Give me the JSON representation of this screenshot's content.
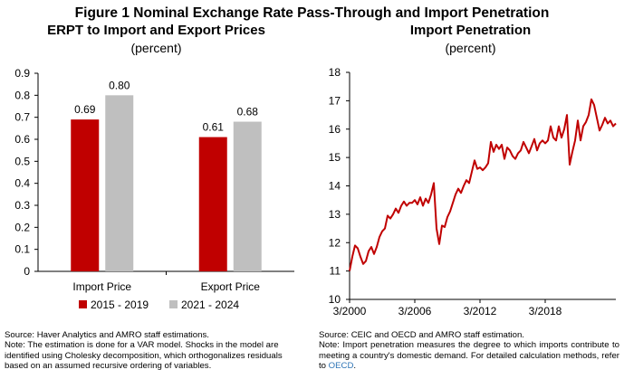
{
  "figure_title": "Figure 1 Nominal Exchange Rate Pass-Through and Import Penetration",
  "left": {
    "title": "ERPT to Import and Export Prices",
    "subtitle": "(percent)",
    "source": "Source: Haver Analytics and AMRO staff estimations.",
    "note": "Note: The estimation is done for a VAR model. Shocks in the model are identified using Cholesky decomposition, which orthogonalizes residuals based on an assumed recursive ordering of variables."
  },
  "right": {
    "title": "Import Penetration",
    "subtitle": "(percent)",
    "source": "Source: CEIC and OECD and AMRO staff estimation.",
    "note_prefix": "Note: Import penetration measures the degree to which imports contribute to meeting a country's domestic demand. For detailed calculation methods, refer to ",
    "note_link": "OECD",
    "note_suffix": "."
  },
  "colors": {
    "series_2015_2019": "#c00000",
    "series_2021_2024": "#bfbfbf",
    "line": "#c00000"
  },
  "chart_data": [
    {
      "type": "bar",
      "title": "ERPT to Import and Export Prices",
      "subtitle": "(percent)",
      "categories": [
        "Import Price",
        "Export Price"
      ],
      "series": [
        {
          "name": "2015 - 2019",
          "values": [
            0.69,
            0.61
          ],
          "labels": [
            "0.69",
            "0.61"
          ]
        },
        {
          "name": "2021 - 2024",
          "values": [
            0.8,
            0.68
          ],
          "labels": [
            "0.80",
            "0.68"
          ]
        }
      ],
      "ylim": [
        0,
        0.9
      ],
      "yticks": [
        "0",
        "0.1",
        "0.2",
        "0.3",
        "0.4",
        "0.5",
        "0.6",
        "0.7",
        "0.8",
        "0.9"
      ],
      "legend": "bottom",
      "grid": false
    },
    {
      "type": "line",
      "title": "Import Penetration",
      "subtitle": "(percent)",
      "ylim": [
        10,
        18
      ],
      "yticks": [
        "10",
        "11",
        "12",
        "13",
        "14",
        "15",
        "16",
        "17",
        "18"
      ],
      "xlim": [
        "2000-03",
        "2024-09"
      ],
      "xticks": [
        "3/2000",
        "3/2006",
        "3/2012",
        "3/2018"
      ],
      "grid": false,
      "series": [
        {
          "x": [
            "2000-03",
            "2000-06",
            "2000-09",
            "2000-12",
            "2001-03",
            "2001-06",
            "2001-09",
            "2001-12",
            "2002-03",
            "2002-06",
            "2002-09",
            "2002-12",
            "2003-03",
            "2003-06",
            "2003-09",
            "2003-12",
            "2004-03",
            "2004-06",
            "2004-09",
            "2004-12",
            "2005-03",
            "2005-06",
            "2005-09",
            "2005-12",
            "2006-03",
            "2006-06",
            "2006-09",
            "2006-12",
            "2007-03",
            "2007-06",
            "2007-09",
            "2007-12",
            "2008-03",
            "2008-06",
            "2008-09",
            "2008-12",
            "2009-03",
            "2009-06",
            "2009-09",
            "2009-12",
            "2010-03",
            "2010-06",
            "2010-09",
            "2010-12",
            "2011-03",
            "2011-06",
            "2011-09",
            "2011-12",
            "2012-03",
            "2012-06",
            "2012-09",
            "2012-12",
            "2013-03",
            "2013-06",
            "2013-09",
            "2013-12",
            "2014-03",
            "2014-06",
            "2014-09",
            "2014-12",
            "2015-03",
            "2015-06",
            "2015-09",
            "2015-12",
            "2016-03",
            "2016-06",
            "2016-09",
            "2016-12",
            "2017-03",
            "2017-06",
            "2017-09",
            "2017-12",
            "2018-03",
            "2018-06",
            "2018-09",
            "2018-12",
            "2019-03",
            "2019-06",
            "2019-09",
            "2019-12",
            "2020-03",
            "2020-06",
            "2020-09",
            "2020-12",
            "2021-03",
            "2021-06",
            "2021-09",
            "2021-12",
            "2022-03",
            "2022-06",
            "2022-09",
            "2022-12",
            "2023-03",
            "2023-06",
            "2023-09",
            "2023-12",
            "2024-03",
            "2024-06",
            "2024-09"
          ],
          "y": [
            11.0,
            11.5,
            11.9,
            11.8,
            11.5,
            11.25,
            11.35,
            11.7,
            11.85,
            11.6,
            11.85,
            12.2,
            12.4,
            12.5,
            12.95,
            12.85,
            13.0,
            13.2,
            13.05,
            13.3,
            13.45,
            13.3,
            13.4,
            13.4,
            13.5,
            13.35,
            13.6,
            13.3,
            13.55,
            13.4,
            13.7,
            14.1,
            12.5,
            11.95,
            12.6,
            12.55,
            12.9,
            13.1,
            13.4,
            13.7,
            13.9,
            13.75,
            14.0,
            14.2,
            14.1,
            14.5,
            14.9,
            14.6,
            14.65,
            14.55,
            14.65,
            14.8,
            15.55,
            15.2,
            15.45,
            15.3,
            15.45,
            14.95,
            15.35,
            15.25,
            15.05,
            14.95,
            15.15,
            15.25,
            15.55,
            15.35,
            15.15,
            15.4,
            15.65,
            15.25,
            15.5,
            15.6,
            15.5,
            15.6,
            16.1,
            15.7,
            15.6,
            16.1,
            15.7,
            16.0,
            16.5,
            14.75,
            15.2,
            15.6,
            16.3,
            15.6,
            16.1,
            16.25,
            16.5,
            17.05,
            16.85,
            16.4,
            15.95,
            16.15,
            16.4,
            16.2,
            16.3,
            16.1,
            16.2
          ]
        }
      ]
    }
  ]
}
